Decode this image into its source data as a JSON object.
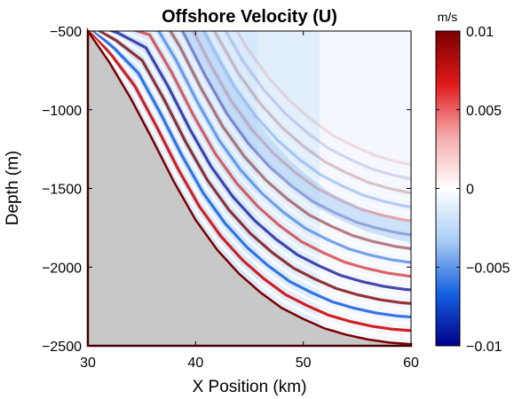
{
  "chart_data": {
    "type": "heatmap",
    "title": "Offshore Velocity (U)",
    "xlabel": "X Position (km)",
    "ylabel": "Depth (m)",
    "xlim": [
      30,
      60
    ],
    "ylim": [
      -2500,
      -500
    ],
    "xticks": [
      30,
      40,
      50,
      60
    ],
    "xtick_labels": [
      "30",
      "40",
      "50",
      "60"
    ],
    "yticks": [
      -2500,
      -2000,
      -1500,
      -1000,
      -500
    ],
    "ytick_labels": [
      "−2500",
      "−2000",
      "−1500",
      "−1000",
      "−500"
    ],
    "colorbar": {
      "unit": "m/s",
      "range": [
        -0.01,
        0.01
      ],
      "ticks": [
        -0.01,
        -0.005,
        0,
        0.005,
        0.01
      ],
      "tick_labels": [
        "−0.01",
        "−0.005",
        "0",
        "0.005",
        "0.01"
      ],
      "colormap": [
        "#00008b",
        "#1560e0",
        "#a9cdf5",
        "#ffffff",
        "#f5a9a9",
        "#e01818",
        "#7a0000"
      ]
    },
    "land_color": "#c8c8c8",
    "seafloor": {
      "x_km": [
        30,
        32,
        34,
        36,
        38,
        40,
        42,
        44,
        46,
        48,
        50,
        52,
        54,
        56,
        58,
        60
      ],
      "depth_m": [
        -500,
        -700,
        -930,
        -1190,
        -1460,
        -1700,
        -1890,
        -2040,
        -2160,
        -2260,
        -2330,
        -2390,
        -2430,
        -2460,
        -2480,
        -2490
      ]
    }
  }
}
